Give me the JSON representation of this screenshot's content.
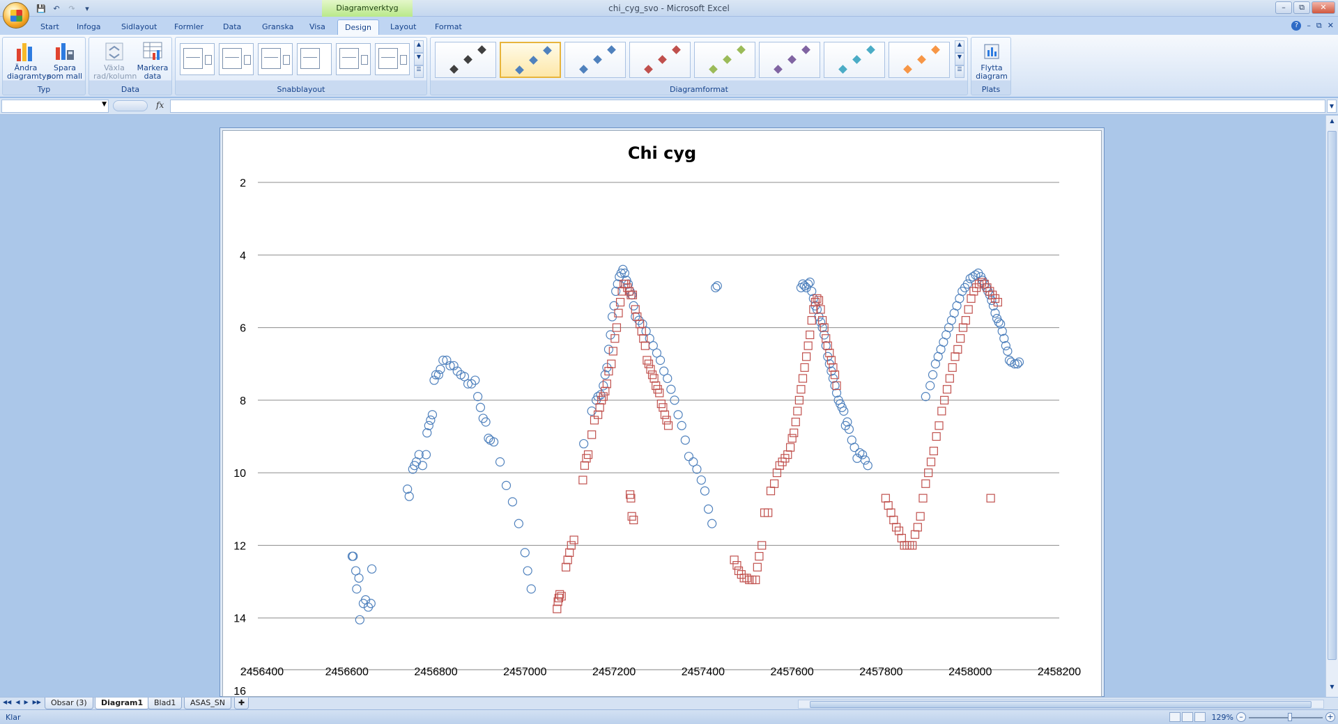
{
  "app": {
    "window_title": "chi_cyg_svo - Microsoft Excel",
    "context_tab": "Diagramverktyg"
  },
  "tabs": [
    "Start",
    "Infoga",
    "Sidlayout",
    "Formler",
    "Data",
    "Granska",
    "Visa",
    "Design",
    "Layout",
    "Format"
  ],
  "active_tab": "Design",
  "ribbon": {
    "typ": {
      "label": "Typ",
      "change_type": "Ändra diagramtyp",
      "save_template": "Spara som mall"
    },
    "data": {
      "label": "Data",
      "switch_row_col": "Växla rad/kolumn",
      "select_data": "Markera data"
    },
    "quick_layout": {
      "label": "Snabblayout"
    },
    "chart_styles": {
      "label": "Diagramformat",
      "styles": [
        {
          "color": "#404040",
          "selected": false
        },
        {
          "color": "#4f81bd",
          "selected": true
        },
        {
          "color": "#4f81bd",
          "selected": false
        },
        {
          "color": "#c0504d",
          "selected": false
        },
        {
          "color": "#9bbb59",
          "selected": false
        },
        {
          "color": "#8064a2",
          "selected": false
        },
        {
          "color": "#4bacc6",
          "selected": false
        },
        {
          "color": "#f79646",
          "selected": false
        }
      ]
    },
    "location": {
      "label": "Plats",
      "move_chart": "Flytta diagram"
    }
  },
  "formula_bar": {
    "name_box": "",
    "fx_label": "fx",
    "formula": ""
  },
  "chart_data": {
    "type": "scatter",
    "title": "Chi cyg",
    "xlabel": "",
    "ylabel": "",
    "xlim": [
      2456400,
      2458200
    ],
    "ylim": [
      2,
      16
    ],
    "y_reversed": true,
    "x_ticks": [
      2456400,
      2456600,
      2456800,
      2457000,
      2457200,
      2457400,
      2457600,
      2457800,
      2458000,
      2458200
    ],
    "y_ticks": [
      2,
      4,
      6,
      8,
      10,
      12,
      14,
      16
    ],
    "grid": "horizontal",
    "legend": "none",
    "series": [
      {
        "marker": "circle",
        "color": "#4f81bd",
        "x": [
          2456612,
          2456614,
          2456620,
          2456622,
          2456627,
          2456629,
          2456637,
          2456642,
          2456648,
          2456654,
          2456656,
          2456736,
          2456740,
          2456748,
          2456752,
          2456756,
          2456762,
          2456770,
          2456778,
          2456780,
          2456784,
          2456788,
          2456792,
          2456796,
          2456800,
          2456806,
          2456810,
          2456816,
          2456824,
          2456832,
          2456840,
          2456848,
          2456856,
          2456864,
          2456872,
          2456880,
          2456888,
          2456894,
          2456900,
          2456906,
          2456912,
          2456918,
          2456922,
          2456930,
          2456944,
          2456958,
          2456972,
          2456986,
          2457000,
          2457006,
          2457014,
          2457132,
          2457150,
          2457160,
          2457164,
          2457170,
          2457176,
          2457180,
          2457184,
          2457188,
          2457192,
          2457196,
          2457200,
          2457204,
          2457208,
          2457212,
          2457216,
          2457220,
          2457224,
          2457228,
          2457232,
          2457236,
          2457240,
          2457244,
          2457248,
          2457256,
          2457264,
          2457272,
          2457280,
          2457288,
          2457296,
          2457304,
          2457312,
          2457320,
          2457328,
          2457336,
          2457344,
          2457352,
          2457360,
          2457368,
          2457378,
          2457386,
          2457396,
          2457404,
          2457412,
          2457420,
          2457428,
          2457432,
          2457620,
          2457624,
          2457628,
          2457632,
          2457636,
          2457640,
          2457644,
          2457648,
          2457652,
          2457656,
          2457660,
          2457664,
          2457668,
          2457672,
          2457676,
          2457680,
          2457684,
          2457688,
          2457692,
          2457696,
          2457700,
          2457704,
          2457708,
          2457712,
          2457716,
          2457720,
          2457724,
          2457728,
          2457734,
          2457740,
          2457746,
          2457752,
          2457758,
          2457764,
          2457770,
          2457900,
          2457910,
          2457916,
          2457922,
          2457928,
          2457934,
          2457940,
          2457946,
          2457952,
          2457958,
          2457964,
          2457970,
          2457976,
          2457982,
          2457988,
          2457994,
          2458000,
          2458006,
          2458012,
          2458018,
          2458024,
          2458028,
          2458032,
          2458036,
          2458040,
          2458044,
          2458048,
          2458052,
          2458056,
          2458060,
          2458064,
          2458068,
          2458072,
          2458076,
          2458080,
          2458084,
          2458088,
          2458092,
          2458100,
          2458106,
          2458110
        ],
        "y": [
          12.3,
          12.3,
          12.7,
          13.2,
          12.9,
          14.05,
          13.6,
          13.5,
          13.7,
          13.6,
          12.65,
          10.45,
          10.65,
          9.9,
          9.8,
          9.7,
          9.5,
          9.8,
          9.5,
          8.9,
          8.7,
          8.55,
          8.4,
          7.45,
          7.3,
          7.3,
          7.15,
          6.9,
          6.9,
          7.05,
          7.05,
          7.2,
          7.3,
          7.35,
          7.55,
          7.55,
          7.45,
          7.9,
          8.2,
          8.5,
          8.6,
          9.05,
          9.1,
          9.15,
          9.7,
          10.35,
          10.8,
          11.4,
          12.2,
          12.7,
          13.2,
          9.2,
          8.3,
          8.0,
          7.9,
          7.85,
          7.6,
          7.3,
          7.1,
          6.6,
          6.2,
          5.7,
          5.4,
          5.0,
          4.8,
          4.6,
          4.5,
          4.4,
          4.5,
          4.7,
          4.8,
          5.0,
          5.1,
          5.4,
          5.7,
          5.8,
          5.9,
          6.1,
          6.3,
          6.5,
          6.7,
          6.9,
          7.2,
          7.4,
          7.7,
          8.0,
          8.4,
          8.7,
          9.1,
          9.55,
          9.7,
          9.9,
          10.2,
          10.5,
          11.0,
          11.4,
          4.9,
          4.85,
          4.9,
          4.8,
          4.85,
          4.9,
          4.8,
          4.75,
          5.0,
          5.2,
          5.4,
          5.5,
          5.7,
          5.85,
          6.0,
          6.2,
          6.5,
          6.8,
          7.0,
          7.2,
          7.4,
          7.6,
          7.8,
          8.0,
          8.1,
          8.2,
          8.3,
          8.7,
          8.6,
          8.8,
          9.1,
          9.3,
          9.6,
          9.45,
          9.5,
          9.65,
          9.8,
          7.9,
          7.6,
          7.3,
          7.0,
          6.8,
          6.6,
          6.4,
          6.2,
          6.0,
          5.8,
          5.6,
          5.4,
          5.2,
          5.0,
          4.9,
          4.8,
          4.65,
          4.6,
          4.55,
          4.5,
          4.6,
          4.7,
          4.8,
          4.9,
          5.0,
          5.1,
          5.25,
          5.4,
          5.6,
          5.75,
          5.85,
          5.9,
          6.1,
          6.3,
          6.5,
          6.65,
          6.9,
          6.95,
          7.0,
          7.0,
          6.95
        ],
        "name": ""
      },
      {
        "marker": "square",
        "color": "#c0504d",
        "x": [
          2457072,
          2457074,
          2457076,
          2457078,
          2457082,
          2457092,
          2457096,
          2457100,
          2457104,
          2457110,
          2457130,
          2457134,
          2457138,
          2457142,
          2457150,
          2457156,
          2457164,
          2457168,
          2457172,
          2457176,
          2457180,
          2457184,
          2457188,
          2457194,
          2457198,
          2457202,
          2457206,
          2457210,
          2457214,
          2457218,
          2457222,
          2457226,
          2457230,
          2457234,
          2457238,
          2457242,
          2457248,
          2457252,
          2457258,
          2457262,
          2457266,
          2457270,
          2457274,
          2457278,
          2457282,
          2457286,
          2457290,
          2457294,
          2457298,
          2457302,
          2457306,
          2457310,
          2457314,
          2457318,
          2457322,
          2457236,
          2457238,
          2457240,
          2457244,
          2457470,
          2457476,
          2457480,
          2457486,
          2457492,
          2457498,
          2457504,
          2457510,
          2457518,
          2457522,
          2457526,
          2457532,
          2457538,
          2457546,
          2457552,
          2457560,
          2457566,
          2457572,
          2457578,
          2457584,
          2457590,
          2457596,
          2457600,
          2457604,
          2457608,
          2457612,
          2457616,
          2457620,
          2457624,
          2457628,
          2457632,
          2457636,
          2457640,
          2457644,
          2457648,
          2457652,
          2457656,
          2457660,
          2457664,
          2457668,
          2457672,
          2457676,
          2457680,
          2457684,
          2457688,
          2457692,
          2457696,
          2457700,
          2457810,
          2457816,
          2457822,
          2457828,
          2457834,
          2457840,
          2457846,
          2457852,
          2457858,
          2457864,
          2457870,
          2457876,
          2457882,
          2457888,
          2457894,
          2457900,
          2457906,
          2457912,
          2457918,
          2457924,
          2457930,
          2457936,
          2457942,
          2457948,
          2457954,
          2457960,
          2457966,
          2457972,
          2457978,
          2457984,
          2457990,
          2457996,
          2458002,
          2458008,
          2458014,
          2458020,
          2458026,
          2458032,
          2458038,
          2458044,
          2458050,
          2458056,
          2458062,
          2458046
        ],
        "y": [
          13.75,
          13.55,
          13.45,
          13.35,
          13.4,
          12.6,
          12.4,
          12.2,
          12.0,
          11.85,
          10.2,
          9.8,
          9.6,
          9.5,
          8.95,
          8.55,
          8.4,
          8.2,
          8.0,
          7.9,
          7.75,
          7.55,
          7.2,
          7.0,
          6.65,
          6.3,
          6.0,
          5.6,
          5.3,
          5.0,
          4.8,
          4.8,
          4.9,
          5.0,
          5.1,
          5.1,
          5.5,
          5.7,
          5.9,
          6.1,
          6.3,
          6.5,
          6.9,
          7.0,
          7.15,
          7.3,
          7.4,
          7.6,
          7.7,
          7.8,
          8.1,
          8.2,
          8.4,
          8.55,
          8.7,
          10.6,
          10.7,
          11.2,
          11.3,
          12.4,
          12.55,
          12.7,
          12.8,
          12.9,
          12.9,
          12.95,
          12.95,
          12.95,
          12.6,
          12.3,
          12.0,
          11.1,
          11.1,
          10.5,
          10.3,
          10.0,
          9.8,
          9.7,
          9.6,
          9.5,
          9.3,
          9.05,
          8.9,
          8.6,
          8.3,
          8.0,
          7.7,
          7.4,
          7.1,
          6.8,
          6.5,
          6.2,
          5.8,
          5.5,
          5.3,
          5.2,
          5.25,
          5.5,
          5.8,
          6.0,
          6.3,
          6.5,
          6.7,
          6.9,
          7.1,
          7.3,
          7.6,
          10.7,
          10.9,
          11.1,
          11.3,
          11.5,
          11.6,
          11.8,
          12.0,
          12.0,
          12.0,
          12.0,
          11.7,
          11.5,
          11.2,
          10.7,
          10.3,
          10.0,
          9.7,
          9.4,
          9.0,
          8.7,
          8.3,
          8.0,
          7.7,
          7.4,
          7.1,
          6.8,
          6.6,
          6.3,
          6.0,
          5.8,
          5.5,
          5.2,
          5.0,
          4.9,
          4.8,
          4.75,
          4.8,
          4.9,
          5.0,
          5.1,
          5.2,
          5.3,
          10.7
        ],
        "name": ""
      }
    ]
  },
  "sheets": {
    "tabs": [
      "Obsar (3)",
      "Diagram1",
      "Blad1",
      "ASAS_SN"
    ],
    "active": "Diagram1"
  },
  "status": {
    "text": "Klar",
    "zoom": "129%"
  }
}
